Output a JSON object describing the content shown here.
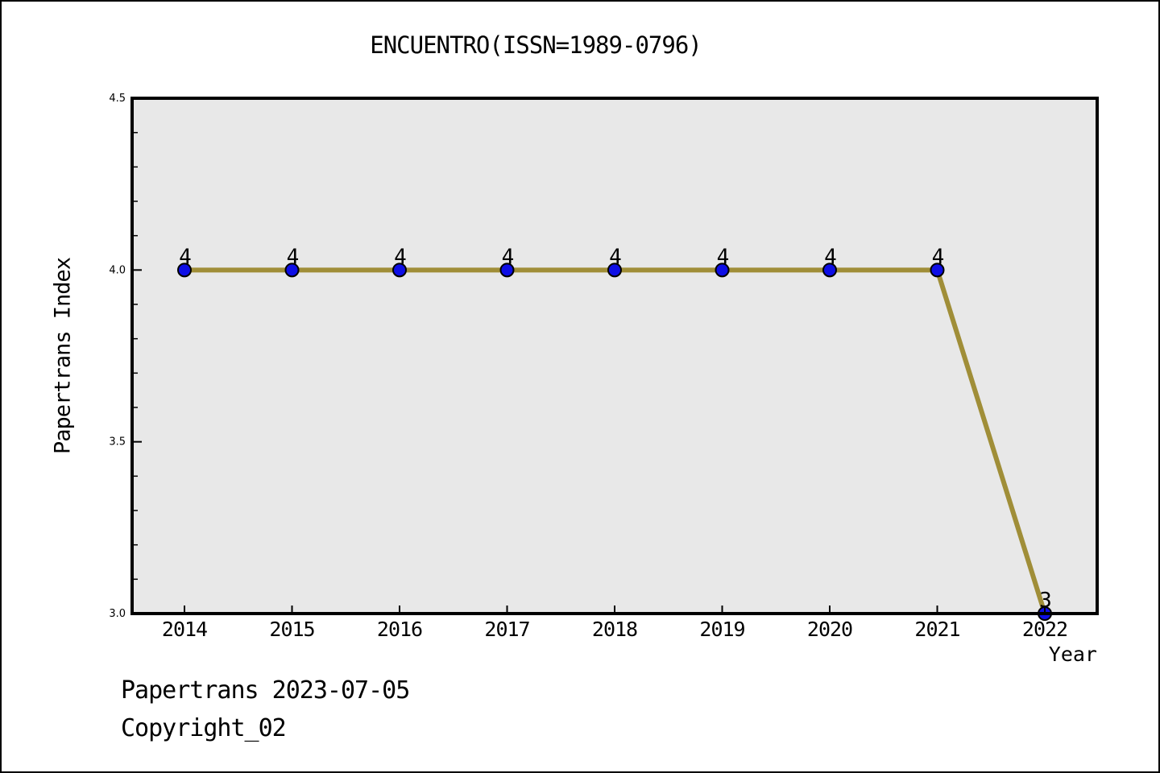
{
  "title": "ENCUENTRO(ISSN=1989-0796)",
  "footer": {
    "line1": "Papertrans 2023-07-05",
    "line2": "Copyright_02"
  },
  "chart_data": {
    "type": "line",
    "title": "ENCUENTRO(ISSN=1989-0796)",
    "x": [
      "2014",
      "2015",
      "2016",
      "2017",
      "2018",
      "2019",
      "2020",
      "2021",
      "2022"
    ],
    "series": [
      {
        "name": "Papertrans Index",
        "values": [
          4,
          4,
          4,
          4,
          4,
          4,
          4,
          4,
          3
        ]
      }
    ],
    "point_labels": [
      "4",
      "4",
      "4",
      "4",
      "4",
      "4",
      "4",
      "4",
      "3"
    ],
    "xlabel": "Year",
    "ylabel": "Papertrans Index",
    "ylim": [
      3.0,
      4.5
    ],
    "yticks": [
      3.0,
      3.5,
      4.0,
      4.5
    ],
    "ytick_labels": [
      "3.0",
      "3.5",
      "4.0",
      "4.5"
    ],
    "y_minor_step": 0.1,
    "grid": false,
    "legend": false,
    "colors": {
      "line": "#A08E38",
      "marker_fill": "#0E0EE6",
      "marker_edge": "#000000",
      "plot_bg": "#E8E8E8",
      "frame": "#000000",
      "text": "#000000"
    }
  }
}
